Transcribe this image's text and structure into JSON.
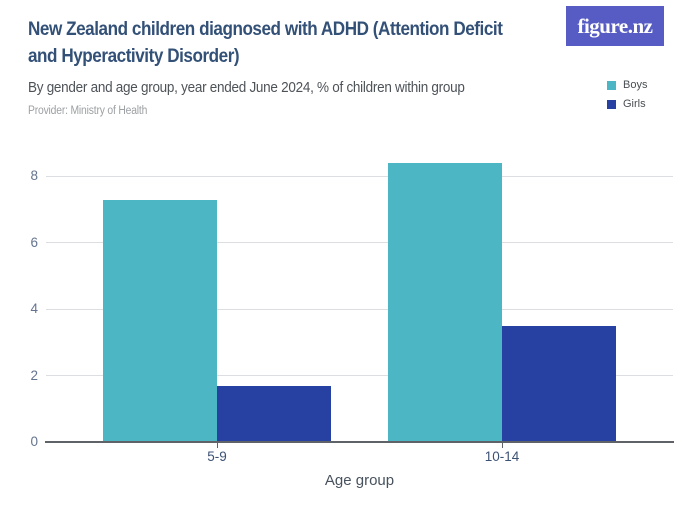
{
  "header": {
    "title_line1": "New Zealand children diagnosed with ADHD (Attention Deficit",
    "title_line2": "and Hyperactivity Disorder)",
    "subtitle": "By gender and age group, year ended June 2024, % of children within group",
    "provider": "Provider: Ministry of Health",
    "logo_text": "figure.nz"
  },
  "legend": {
    "items": [
      {
        "label": "Boys",
        "color": "#4db6c4"
      },
      {
        "label": "Girls",
        "color": "#2641a1"
      }
    ]
  },
  "chart_data": {
    "type": "bar",
    "title": "New Zealand children diagnosed with ADHD (Attention Deficit and Hyperactivity Disorder)",
    "subtitle": "By gender and age group, year ended June 2024, % of children within group",
    "categories": [
      "5-9",
      "10-14"
    ],
    "series": [
      {
        "name": "Boys",
        "color": "#4db6c4",
        "values": [
          7.3,
          8.4
        ]
      },
      {
        "name": "Girls",
        "color": "#2641a1",
        "values": [
          1.7,
          3.5
        ]
      }
    ],
    "xlabel": "Age group",
    "ylabel": "",
    "ylim": [
      0,
      8.9
    ],
    "yticks": [
      0,
      2,
      4,
      6,
      8
    ],
    "grid": true,
    "legend_position": "top-right"
  },
  "colors": {
    "boys": "#4db6c4",
    "girls": "#2641a1",
    "logo_background": "#565cc4",
    "title_text": "#335077",
    "gridline": "#dcdee1",
    "axis": "#5f6368"
  }
}
